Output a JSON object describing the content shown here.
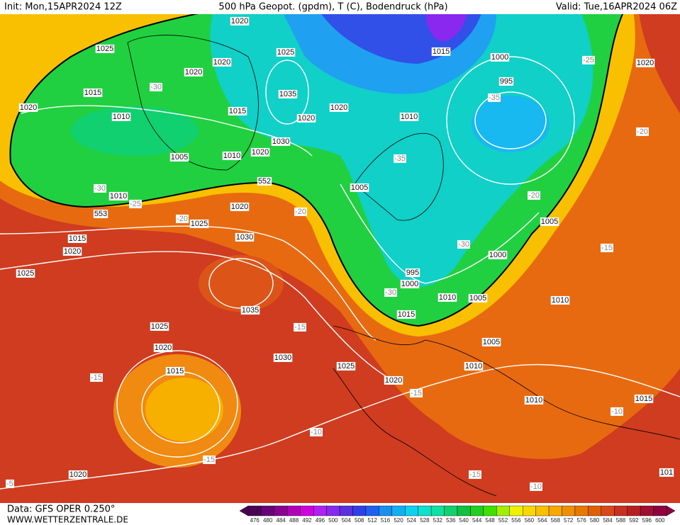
{
  "header": {
    "init": "Init: Mon,15APR2024 12Z",
    "title": "500 hPa Geopot. (gpdm), T (C), Bodendruck (hPa)",
    "valid": "Valid: Tue,16APR2024 06Z"
  },
  "footer": {
    "source": "Data: GFS OPER 0.250°",
    "site": "WWW.WETTERZENTRALE.DE"
  },
  "legend": {
    "levels": [
      476,
      480,
      484,
      488,
      492,
      496,
      500,
      504,
      508,
      512,
      516,
      520,
      524,
      528,
      532,
      536,
      540,
      544,
      548,
      552,
      556,
      560,
      564,
      568,
      572,
      576,
      580,
      584,
      588,
      592,
      596,
      600
    ],
    "colors": [
      "#4b0055",
      "#6a007a",
      "#8a0090",
      "#b000b8",
      "#d000e0",
      "#b020f0",
      "#8a28f0",
      "#5a30e0",
      "#3040e8",
      "#2060f0",
      "#1890f0",
      "#10b0f0",
      "#10d0f0",
      "#10e0d0",
      "#10e0a0",
      "#10d070",
      "#10c040",
      "#20d020",
      "#40e000",
      "#a0f000",
      "#f0f000",
      "#f8d800",
      "#f8c000",
      "#f8a800",
      "#f09000",
      "#e87800",
      "#e06000",
      "#d84818",
      "#c83020",
      "#b82020",
      "#a01030",
      "#900040"
    ]
  },
  "labels": [
    "1020",
    "1025",
    "1025",
    "1015",
    "1000",
    "-25",
    "1020",
    "1020",
    "1020",
    "-30",
    "995",
    "1015",
    "1035",
    "-35",
    "1020",
    "1015",
    "1020",
    "1020",
    "1010",
    "1010",
    "-20",
    "1030",
    "1020",
    "1010",
    "1005",
    "-35",
    "552",
    "1005",
    "-30",
    "1010",
    "-25",
    "-20",
    "1020",
    "553",
    "-20",
    "-20",
    "1025",
    "1005",
    "1015",
    "1030",
    "-30",
    "-15",
    "1020",
    "1000",
    "1025",
    "995",
    "1000",
    "-30",
    "1010",
    "1005",
    "1010",
    "1035",
    "1015",
    "-15",
    "1025",
    "1020",
    "1005",
    "1030",
    "1025",
    "1010",
    "1015",
    "-15",
    "1020",
    "-15",
    "1010",
    "1015",
    "-10",
    "-10",
    "-15",
    "-15",
    "1020",
    "-10",
    "101",
    "-5"
  ]
}
